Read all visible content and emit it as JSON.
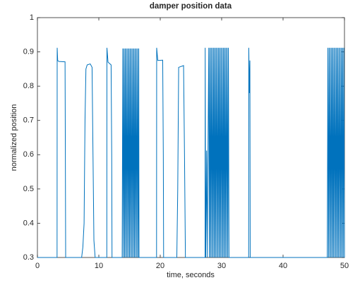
{
  "chart_data": {
    "type": "line",
    "title": "damper position data",
    "x_label": "time, seconds",
    "y_label": "normalized position",
    "xlim": [
      0,
      50
    ],
    "xticks": [
      0,
      10,
      20,
      30,
      40,
      50
    ],
    "ylim": [
      0.3,
      1
    ],
    "yticks": [
      0.3,
      0.4,
      0.5,
      0.6,
      0.7,
      0.8,
      0.9,
      1
    ],
    "grid": false,
    "series": [
      {
        "color": "#0072bd",
        "x": [
          0,
          3.2,
          3.22,
          3.3,
          3.5,
          4.5,
          4.55,
          4.6,
          7.2,
          7.4,
          7.6,
          7.75,
          7.9,
          8.1,
          8.6,
          8.9,
          9.05,
          9.2,
          9.4,
          11.3,
          11.32,
          11.5,
          12.0,
          12.1,
          12.15,
          13.8,
          13.9,
          14.0,
          14.1,
          14.2,
          14.3,
          14.4,
          14.5,
          14.6,
          14.7,
          14.8,
          14.9,
          15.0,
          15.1,
          15.2,
          15.3,
          15.4,
          15.5,
          15.6,
          15.7,
          15.8,
          15.9,
          16.0,
          16.1,
          16.2,
          16.3,
          16.4,
          16.5,
          16.55,
          19.4,
          19.42,
          19.6,
          20.4,
          20.5,
          20.55,
          22.7,
          22.85,
          23.0,
          23.8,
          23.95,
          24.1,
          27.3,
          27.32,
          27.4,
          27.55,
          27.65,
          27.9,
          28.0,
          28.1,
          28.2,
          28.3,
          28.4,
          28.5,
          28.6,
          28.7,
          28.8,
          28.9,
          29.0,
          29.1,
          29.2,
          29.3,
          29.4,
          29.5,
          29.6,
          29.7,
          29.8,
          29.9,
          30.0,
          30.1,
          30.2,
          30.3,
          30.4,
          30.5,
          30.6,
          30.7,
          30.8,
          30.9,
          31.0,
          31.1,
          31.2,
          34.4,
          34.42,
          34.5,
          34.6,
          34.65,
          47.2,
          47.3,
          47.4,
          47.5,
          47.6,
          47.7,
          47.8,
          47.9,
          48.0,
          48.1,
          48.2,
          48.3,
          48.4,
          48.5,
          48.6,
          48.7,
          48.8,
          48.9,
          49.0,
          49.1,
          49.2,
          49.3,
          49.4,
          49.5,
          49.6,
          49.7,
          49.8,
          49.9,
          50.0
        ],
        "values": [
          0.3,
          0.3,
          0.912,
          0.875,
          0.872,
          0.871,
          0.6,
          0.3,
          0.3,
          0.33,
          0.4,
          0.7,
          0.85,
          0.862,
          0.865,
          0.855,
          0.6,
          0.35,
          0.3,
          0.3,
          0.912,
          0.87,
          0.862,
          0.6,
          0.3,
          0.3,
          0.91,
          0.3,
          0.91,
          0.3,
          0.91,
          0.3,
          0.91,
          0.3,
          0.91,
          0.3,
          0.91,
          0.3,
          0.91,
          0.3,
          0.91,
          0.3,
          0.91,
          0.3,
          0.91,
          0.3,
          0.91,
          0.3,
          0.91,
          0.3,
          0.91,
          0.3,
          0.91,
          0.3,
          0.3,
          0.912,
          0.875,
          0.876,
          0.6,
          0.3,
          0.3,
          0.5,
          0.855,
          0.86,
          0.6,
          0.3,
          0.3,
          0.912,
          0.3,
          0.612,
          0.3,
          0.912,
          0.3,
          0.912,
          0.3,
          0.912,
          0.3,
          0.912,
          0.3,
          0.912,
          0.3,
          0.912,
          0.3,
          0.912,
          0.3,
          0.912,
          0.3,
          0.912,
          0.3,
          0.912,
          0.3,
          0.912,
          0.3,
          0.912,
          0.3,
          0.912,
          0.3,
          0.912,
          0.3,
          0.912,
          0.3,
          0.912,
          0.3,
          0.912,
          0.3,
          0.3,
          0.912,
          0.78,
          0.875,
          0.3,
          0.3,
          0.912,
          0.3,
          0.912,
          0.3,
          0.912,
          0.3,
          0.912,
          0.3,
          0.912,
          0.3,
          0.912,
          0.3,
          0.912,
          0.3,
          0.912,
          0.3,
          0.912,
          0.3,
          0.912,
          0.3,
          0.912,
          0.3,
          0.912,
          0.3,
          0.912,
          0.3,
          0.912,
          0.3
        ]
      }
    ]
  }
}
